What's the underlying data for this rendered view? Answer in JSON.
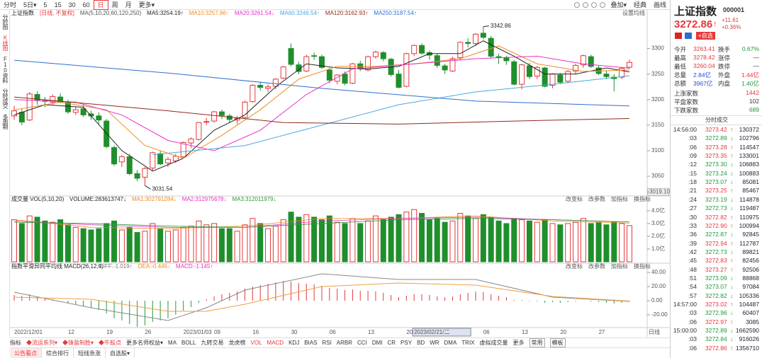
{
  "toolbar": {
    "tabs": [
      "分时",
      "5日▾",
      "5",
      "15",
      "30",
      "60",
      "日",
      "周",
      "月",
      "更多▾"
    ],
    "right": [
      "叠加▾",
      "经典",
      "画线"
    ]
  },
  "side_tabs": [
    "分时图",
    "K线图",
    "F10资料",
    "分时成交",
    "多周期"
  ],
  "kline": {
    "type": "candlestick",
    "title": "上证指数",
    "period_label": "[日线, 不复权]",
    "ma_params": "MA(5,10,20,60,120,250)",
    "settings_label": "设置均线",
    "up_color": "#e5383b",
    "down_color": "#1f8f2c",
    "candles": [
      [
        3168,
        3188,
        3160,
        3178
      ],
      [
        3175,
        3182,
        3150,
        3156
      ],
      [
        3160,
        3215,
        3158,
        3211
      ],
      [
        3210,
        3216,
        3190,
        3199
      ],
      [
        3198,
        3205,
        3185,
        3197
      ],
      [
        3195,
        3210,
        3190,
        3206
      ],
      [
        3205,
        3212,
        3193,
        3195
      ],
      [
        3194,
        3200,
        3172,
        3176
      ],
      [
        3175,
        3186,
        3170,
        3180
      ],
      [
        3182,
        3190,
        3166,
        3170
      ],
      [
        3172,
        3178,
        3160,
        3168
      ],
      [
        3168,
        3175,
        3152,
        3160
      ],
      [
        3158,
        3162,
        3105,
        3108
      ],
      [
        3106,
        3110,
        3070,
        3074
      ],
      [
        3078,
        3092,
        3068,
        3088
      ],
      [
        3088,
        3094,
        3052,
        3055
      ],
      [
        3055,
        3062,
        3040,
        3046
      ],
      [
        3048,
        3068,
        3031.54,
        3065
      ],
      [
        3066,
        3098,
        3060,
        3096
      ],
      [
        3094,
        3100,
        3072,
        3074
      ],
      [
        3076,
        3088,
        3068,
        3083
      ],
      [
        3080,
        3094,
        3076,
        3089
      ],
      [
        3088,
        3118,
        3085,
        3116
      ],
      [
        3115,
        3126,
        3105,
        3123
      ],
      [
        3122,
        3156,
        3120,
        3155
      ],
      [
        3156,
        3164,
        3150,
        3157
      ],
      [
        3158,
        3178,
        3155,
        3176
      ],
      [
        3176,
        3180,
        3162,
        3169
      ],
      [
        3168,
        3172,
        3155,
        3161
      ],
      [
        3160,
        3168,
        3152,
        3163
      ],
      [
        3165,
        3198,
        3162,
        3195
      ],
      [
        3196,
        3230,
        3194,
        3228
      ],
      [
        3228,
        3235,
        3218,
        3224
      ],
      [
        3222,
        3230,
        3215,
        3225
      ],
      [
        3226,
        3242,
        3220,
        3240
      ],
      [
        3242,
        3266,
        3240,
        3264
      ],
      [
        3300,
        3310,
        3265,
        3269
      ],
      [
        3268,
        3274,
        3250,
        3255
      ],
      [
        3256,
        3288,
        3254,
        3284
      ],
      [
        3286,
        3292,
        3278,
        3285
      ],
      [
        3284,
        3288,
        3260,
        3263
      ],
      [
        3258,
        3262,
        3232,
        3238
      ],
      [
        3236,
        3250,
        3230,
        3248
      ],
      [
        3250,
        3255,
        3228,
        3232
      ],
      [
        3232,
        3272,
        3230,
        3270
      ],
      [
        3270,
        3276,
        3256,
        3260
      ],
      [
        3258,
        3286,
        3255,
        3284
      ],
      [
        3284,
        3296,
        3280,
        3293
      ],
      [
        3292,
        3295,
        3275,
        3280
      ],
      [
        3279,
        3282,
        3245,
        3249
      ],
      [
        3250,
        3258,
        3222,
        3224
      ],
      [
        3226,
        3292,
        3224,
        3290
      ],
      [
        3290,
        3308,
        3285,
        3306
      ],
      [
        3306,
        3310,
        3288,
        3291
      ],
      [
        3292,
        3296,
        3278,
        3287
      ],
      [
        3286,
        3290,
        3262,
        3267
      ],
      [
        3266,
        3270,
        3250,
        3258
      ],
      [
        3256,
        3284,
        3254,
        3280
      ],
      [
        3282,
        3314,
        3278,
        3312
      ],
      [
        3312,
        3320,
        3302,
        3310
      ],
      [
        3310,
        3330,
        3305,
        3328
      ],
      [
        3330,
        3342.86,
        3318,
        3322
      ],
      [
        3320,
        3325,
        3280,
        3285
      ],
      [
        3284,
        3290,
        3270,
        3283
      ],
      [
        3282,
        3286,
        3268,
        3276
      ],
      [
        3274,
        3278,
        3228,
        3230
      ],
      [
        3230,
        3270,
        3220,
        3268
      ],
      [
        3266,
        3272,
        3240,
        3245
      ],
      [
        3246,
        3266,
        3240,
        3263
      ],
      [
        3262,
        3264,
        3224,
        3226
      ],
      [
        3228,
        3252,
        3222,
        3250
      ],
      [
        3248,
        3252,
        3230,
        3234
      ],
      [
        3236,
        3258,
        3232,
        3255
      ],
      [
        3256,
        3270,
        3250,
        3267
      ],
      [
        3268,
        3288,
        3262,
        3286
      ],
      [
        3284,
        3288,
        3262,
        3265
      ],
      [
        3262,
        3266,
        3248,
        3251
      ],
      [
        3250,
        3256,
        3240,
        3245
      ],
      [
        3244,
        3250,
        3216,
        3241
      ],
      [
        3244,
        3264,
        3240,
        3261
      ],
      [
        3263.41,
        3278.42,
        3260.04,
        3272.86
      ]
    ],
    "ylim": [
      3014,
      3377
    ],
    "yticks": [
      3050,
      3100,
      3150,
      3200,
      3250,
      3300
    ],
    "last_tick": {
      "value": 3019.1,
      "label": "3019.10"
    },
    "series": [
      {
        "label": "MA5:3254.19↑",
        "color": "#222222",
        "x": [
          0,
          4,
          9,
          14,
          18,
          22,
          26,
          30,
          34,
          38,
          42,
          46,
          50,
          54,
          58,
          61,
          65,
          69,
          73,
          77,
          80
        ],
        "values": [
          3170,
          3190,
          3185,
          3100,
          3060,
          3085,
          3140,
          3170,
          3225,
          3270,
          3262,
          3260,
          3265,
          3290,
          3290,
          3315,
          3285,
          3250,
          3250,
          3262,
          3254.19
        ]
      },
      {
        "label": "MA10:3257.96↑",
        "color": "#f08a1c",
        "x": [
          0,
          6,
          12,
          17,
          22,
          27,
          32,
          37,
          42,
          47,
          52,
          58,
          63,
          68,
          74,
          80
        ],
        "values": [
          3180,
          3195,
          3180,
          3110,
          3085,
          3130,
          3180,
          3240,
          3265,
          3265,
          3270,
          3280,
          3305,
          3270,
          3255,
          3257.96
        ]
      },
      {
        "label": "MA20:3261.54↓",
        "color": "#e830c8",
        "x": [
          0,
          8,
          14,
          20,
          26,
          32,
          38,
          44,
          52,
          60,
          68,
          74,
          80
        ],
        "values": [
          3200,
          3195,
          3170,
          3120,
          3100,
          3140,
          3210,
          3260,
          3270,
          3280,
          3285,
          3270,
          3261.54
        ]
      },
      {
        "label": "MA60:3246.54↑",
        "color": "#4aa8e0",
        "x": [
          18,
          30,
          40,
          50,
          60,
          70,
          80
        ],
        "values": [
          3092,
          3110,
          3150,
          3190,
          3215,
          3230,
          3246.54
        ]
      },
      {
        "label": "MA120:3162.93↑",
        "color": "#8b2a1a",
        "x": [
          0,
          20,
          35,
          50,
          65,
          80
        ],
        "values": [
          3205,
          3178,
          3155,
          3152,
          3158,
          3162.93
        ]
      },
      {
        "label": "MA250:3187.54↑",
        "color": "#2f6fd0",
        "x": [
          0,
          20,
          40,
          60,
          80
        ],
        "values": [
          3277,
          3252,
          3222,
          3197,
          3187.54
        ]
      }
    ],
    "annotations": [
      {
        "x": 61,
        "value": 3342.86,
        "label": "3342.86"
      },
      {
        "x": 17,
        "value": 3031.54,
        "label": "3031.54"
      }
    ]
  },
  "volume": {
    "type": "bar",
    "title": "成交量 VOL(5,10,20)",
    "buttons": [
      "改变标",
      "改参数",
      "加指标",
      "换指标"
    ],
    "values": [
      3.3,
      3.0,
      3.6,
      3.5,
      3.2,
      3.1,
      3.3,
      2.9,
      2.7,
      2.6,
      2.5,
      2.6,
      3.0,
      3.2,
      2.5,
      2.7,
      2.3,
      2.4,
      3.0,
      2.6,
      2.4,
      2.5,
      2.7,
      2.8,
      3.2,
      2.9,
      3.0,
      2.6,
      2.6,
      2.4,
      2.9,
      3.4,
      3.0,
      2.6,
      2.8,
      3.3,
      3.9,
      3.5,
      3.7,
      3.5,
      3.3,
      3.6,
      3.1,
      3.0,
      3.4,
      3.0,
      3.2,
      3.6,
      3.3,
      3.5,
      3.7,
      3.9,
      4.1,
      3.8,
      3.3,
      3.4,
      3.1,
      3.2,
      3.8,
      3.6,
      3.4,
      3.7,
      3.5,
      3.2,
      3.0,
      3.4,
      3.3,
      3.2,
      3.1,
      3.3,
      3.0,
      2.9,
      3.0,
      3.1,
      3.4,
      3.0,
      3.1,
      2.9,
      3.1,
      3.0,
      2.84
    ],
    "ylim": [
      0,
      4.44
    ],
    "yticks": [
      {
        "value": 1,
        "label": "1.0亿"
      },
      {
        "value": 2,
        "label": "2.0亿"
      },
      {
        "value": 3,
        "label": "3.0亿"
      },
      {
        "value": 4,
        "label": "4.0亿"
      }
    ],
    "legend": [
      {
        "label": "VOLUME:283613747↓",
        "color": "#222222"
      },
      {
        "label": "MA1:302791284↓",
        "color": "#f08a1c"
      },
      {
        "label": "MA2:312975678↓",
        "color": "#e830c8"
      },
      {
        "label": "MA3:312011979↓",
        "color": "#2a9a3a"
      }
    ],
    "series": [
      {
        "color": "#f08a1c",
        "x": [
          0,
          10,
          20,
          30,
          40,
          50,
          60,
          70,
          80
        ],
        "values": [
          3.3,
          2.7,
          2.6,
          2.8,
          3.4,
          3.4,
          3.6,
          3.2,
          3.03
        ]
      },
      {
        "color": "#e830c8",
        "x": [
          0,
          10,
          20,
          30,
          40,
          50,
          60,
          70,
          80
        ],
        "values": [
          3.2,
          2.9,
          2.7,
          2.7,
          3.2,
          3.4,
          3.5,
          3.3,
          3.13
        ]
      },
      {
        "color": "#2a9a3a",
        "x": [
          0,
          10,
          20,
          30,
          40,
          50,
          60,
          70,
          80
        ],
        "values": [
          3.1,
          3.0,
          2.8,
          2.7,
          3.0,
          3.3,
          3.4,
          3.3,
          3.12
        ]
      }
    ]
  },
  "macd": {
    "type": "histogram",
    "title": "指数平滑异同平均线 MACD(26,12,9)",
    "buttons": [
      "改变标",
      "改参数",
      "加指标",
      "换指标"
    ],
    "pos_color": "#e5383b",
    "neg_color": "#2a9a3a",
    "values": [
      8,
      7,
      9,
      6,
      4,
      2,
      0,
      -3,
      -5,
      -8,
      -10,
      -13,
      -18,
      -25,
      -28,
      -33,
      -37,
      -35,
      -30,
      -28,
      -25,
      -20,
      -14,
      -9,
      -3,
      2,
      6,
      9,
      11,
      13,
      17,
      20,
      22,
      24,
      26,
      28,
      27,
      25,
      24,
      23,
      21,
      18,
      17,
      15,
      16,
      14,
      14,
      13,
      11,
      8,
      5,
      7,
      9,
      9,
      8,
      6,
      5,
      6,
      9,
      11,
      13,
      12,
      9,
      7,
      5,
      1,
      1,
      -1,
      -1,
      -3,
      -2,
      -3,
      -2,
      -1,
      0,
      -1,
      -2,
      -3,
      -4,
      -3,
      -1.145
    ],
    "ylim": [
      -37,
      45
    ],
    "yticks": [
      {
        "value": -20,
        "label": "-20.00"
      },
      {
        "value": 0,
        "label": "0.00"
      },
      {
        "value": 20,
        "label": "20.00"
      },
      {
        "value": 40,
        "label": "40.00"
      }
    ],
    "legend": [
      {
        "label": "DIFF:-1.019↑",
        "color": "#777777"
      },
      {
        "label": "DEA:-0.446↓",
        "color": "#f08a1c"
      },
      {
        "label": "MACD:-1.145↑",
        "color": "#e830c8"
      }
    ],
    "series": [
      {
        "color": "#888888",
        "x": [
          0,
          10,
          20,
          25,
          30,
          40,
          50,
          60,
          70,
          80
        ],
        "values": [
          12,
          -10,
          -28,
          -10,
          15,
          38,
          30,
          30,
          5,
          -1.019
        ]
      },
      {
        "color": "#f0a040",
        "x": [
          0,
          10,
          20,
          25,
          30,
          40,
          50,
          60,
          70,
          80
        ],
        "values": [
          5,
          2,
          -15,
          -15,
          -5,
          20,
          25,
          22,
          6,
          -0.446
        ]
      }
    ]
  },
  "dates": {
    "categories": [
      "2022/12/01",
      null,
      null,
      null,
      null,
      null,
      null,
      "12",
      null,
      null,
      null,
      null,
      "19",
      null,
      null,
      null,
      null,
      "26",
      null,
      null,
      null,
      null,
      "2023/01/03",
      null,
      null,
      null,
      "09",
      null,
      null,
      null,
      null,
      "16",
      null,
      null,
      null,
      null,
      "30",
      null,
      null,
      null,
      null,
      "06",
      null,
      null,
      null,
      null,
      "13",
      null,
      null,
      null,
      null,
      "20",
      "2023/02/21/二",
      null,
      null,
      null,
      null,
      null,
      null,
      null,
      null,
      "06",
      null,
      null,
      null,
      null,
      "13",
      null,
      null,
      null,
      null,
      "20",
      null,
      null,
      null,
      null,
      "27",
      null,
      null,
      null,
      null
    ],
    "highlight": 52,
    "period": "日线"
  },
  "quote": {
    "name": "上证指数",
    "code": "000001",
    "price": "3272.86",
    "arrow": "↑",
    "change": "+11.61",
    "pct": "+0.36%",
    "add": "+自选",
    "stats": [
      [
        "今开",
        "3263.41",
        "换手",
        "0.67%"
      ],
      [
        "最高",
        "3278.42",
        "涨停",
        "—"
      ],
      [
        "最低",
        "3260.04",
        "跌停",
        "—"
      ],
      [
        "总量",
        "2.84亿",
        "外盘",
        "1.44亿"
      ],
      [
        "总额",
        "3967亿",
        "内盘",
        "1.40亿"
      ]
    ],
    "breadth": [
      [
        "上涨家数",
        "1442"
      ],
      [
        "平盘家数",
        "102"
      ],
      [
        "下跌家数",
        "689"
      ]
    ]
  },
  "trades": {
    "title": "分时成交",
    "rows": [
      [
        "14:56:00",
        "3273.42",
        "↑",
        "130372",
        "#e5383b"
      ],
      [
        ":03",
        "3272.89",
        "↓",
        "102796",
        "#1f9a3a"
      ],
      [
        ":06",
        "3273.28",
        "↑",
        "114547",
        "#e5383b"
      ],
      [
        ":09",
        "3273.35",
        "↑",
        "133001",
        "#e5383b"
      ],
      [
        ":12",
        "3273.30",
        "↓",
        "106883",
        "#1f9a3a"
      ],
      [
        ":15",
        "3273.24",
        "↓",
        "100883",
        "#1f9a3a"
      ],
      [
        ":18",
        "3273.07",
        "↓",
        "85081",
        "#1f9a3a"
      ],
      [
        ":21",
        "3273.25",
        "↑",
        "85467",
        "#e5383b"
      ],
      [
        ":24",
        "3273.19",
        "↓",
        "114878",
        "#1f9a3a"
      ],
      [
        ":27",
        "3272.73",
        "↓",
        "119487",
        "#1f9a3a"
      ],
      [
        ":30",
        "3272.82",
        "↑",
        "110975",
        "#e5383b"
      ],
      [
        ":33",
        "3272.90",
        "↑",
        "100994",
        "#e5383b"
      ],
      [
        ":36",
        "3272.87",
        "↓",
        "92845",
        "#1f9a3a"
      ],
      [
        ":39",
        "3272.94",
        "↑",
        "112787",
        "#e5383b"
      ],
      [
        ":42",
        "3272.73",
        "↓",
        "89821",
        "#1f9a3a"
      ],
      [
        ":45",
        "3272.83",
        "↑",
        "82456",
        "#e5383b"
      ],
      [
        ":48",
        "3273.27",
        "↑",
        "92506",
        "#e5383b"
      ],
      [
        ":51",
        "3273.09",
        "↓",
        "88868",
        "#1f9a3a"
      ],
      [
        ":54",
        "3273.07",
        "↓",
        "97084",
        "#1f9a3a"
      ],
      [
        ":57",
        "3272.82",
        "↓",
        "105336",
        "#1f9a3a"
      ],
      [
        "14:57:00",
        "3273.02",
        "↑",
        "104487",
        "#e5383b"
      ],
      [
        ":03",
        "3272.96",
        "↓",
        "60407",
        "#1f9a3a"
      ],
      [
        ":06",
        "3272.97",
        "↑",
        "3085",
        "#e5383b"
      ],
      [
        "15:00:00",
        "3272.89",
        "↓",
        "1662590",
        "#1f9a3a"
      ],
      [
        ":03",
        "3272.84",
        "↓",
        "916026",
        "#1f9a3a"
      ],
      [
        ":06",
        "3272.86",
        "↑",
        "1356710",
        "#e5383b"
      ]
    ]
  },
  "bottom": {
    "indicators": [
      "指标",
      "◆流运系列▾",
      "◆锋盈制胜▾",
      "◆牛股点",
      "更多名师权益▾",
      "MA",
      "BOLL",
      "九转交易",
      "龙虎榜",
      "VOL",
      "MACD",
      "KDJ",
      "BIAS",
      "RSI",
      "ARBR",
      "CCI",
      "DMI",
      "CR",
      "PSY",
      "BD",
      "WR",
      "DMA",
      "TRIX",
      "虚拟成交量",
      "更多",
      "常用",
      "模板"
    ],
    "tabs": [
      "公告看点",
      "综合排行",
      "短线急涨",
      "自选股▾"
    ]
  }
}
